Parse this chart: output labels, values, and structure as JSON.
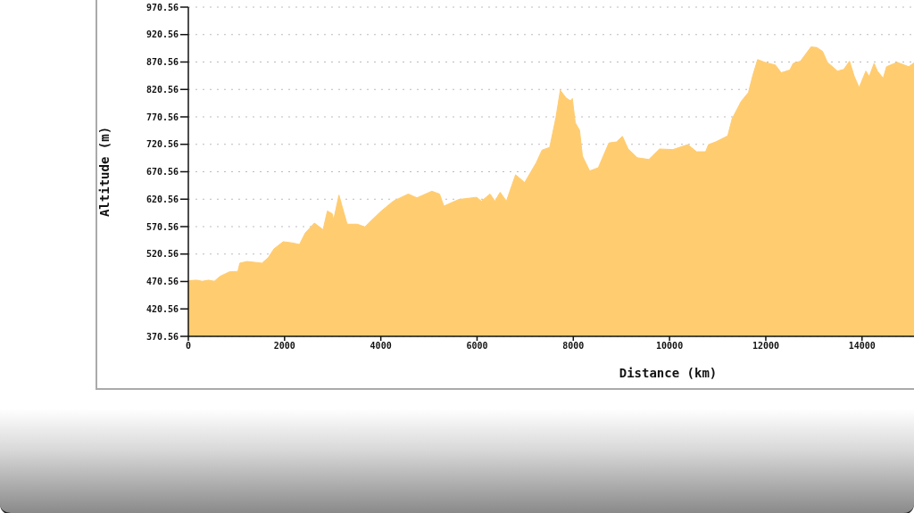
{
  "chart_data": {
    "type": "area",
    "xlabel": "Distance (km)",
    "ylabel": "Altitude (m)",
    "x": [
      0,
      170,
      290,
      420,
      540,
      660,
      850,
      1030,
      1070,
      1220,
      1530,
      1660,
      1780,
      1970,
      2150,
      2310,
      2430,
      2620,
      2800,
      2890,
      2990,
      3020,
      3130,
      3190,
      3300,
      3510,
      3670,
      3820,
      4010,
      4260,
      4570,
      4750,
      5060,
      5220,
      5310,
      5620,
      5990,
      6090,
      6270,
      6370,
      6480,
      6610,
      6800,
      6990,
      7230,
      7350,
      7510,
      7640,
      7730,
      7850,
      7940,
      7980,
      8040,
      8130,
      8190,
      8340,
      8520,
      8740,
      8900,
      9020,
      9140,
      9330,
      9570,
      9790,
      10070,
      10380,
      10560,
      10750,
      10810,
      10960,
      11210,
      11300,
      11490,
      11640,
      11730,
      11830,
      11980,
      12200,
      12320,
      12500,
      12570,
      12720,
      12940,
      13060,
      13180,
      13280,
      13490,
      13620,
      13740,
      13840,
      13940,
      14080,
      14150,
      14250,
      14320,
      14440,
      14510,
      14730,
      14970,
      15080
    ],
    "values": [
      472,
      473,
      471,
      473,
      471,
      480,
      488,
      489,
      504,
      507,
      504,
      514,
      530,
      543,
      541,
      538,
      559,
      577,
      565,
      599,
      594,
      583,
      628,
      609,
      575,
      575,
      570,
      583,
      599,
      617,
      630,
      623,
      635,
      630,
      608,
      620,
      624,
      617,
      630,
      617,
      633,
      617,
      665,
      651,
      687,
      710,
      715,
      770,
      819,
      805,
      800,
      804,
      760,
      746,
      699,
      672,
      678,
      723,
      725,
      735,
      712,
      696,
      693,
      712,
      711,
      720,
      707,
      707,
      720,
      725,
      736,
      767,
      799,
      815,
      846,
      875,
      870,
      865,
      851,
      856,
      868,
      872,
      898,
      897,
      890,
      870,
      854,
      857,
      872,
      844,
      824,
      854,
      844,
      868,
      854,
      841,
      862,
      870,
      862,
      869
    ],
    "color": "#ffcc70",
    "xlim": [
      0,
      15080
    ],
    "ylim": [
      370.56,
      970.56
    ],
    "xticks": [
      0,
      2000,
      4000,
      6000,
      8000,
      10000,
      12000,
      14000
    ],
    "yticks": [
      370.56,
      420.56,
      470.56,
      520.56,
      570.56,
      620.56,
      670.56,
      720.56,
      770.56,
      820.56,
      870.56,
      920.56,
      970.56
    ],
    "grid": "y"
  }
}
